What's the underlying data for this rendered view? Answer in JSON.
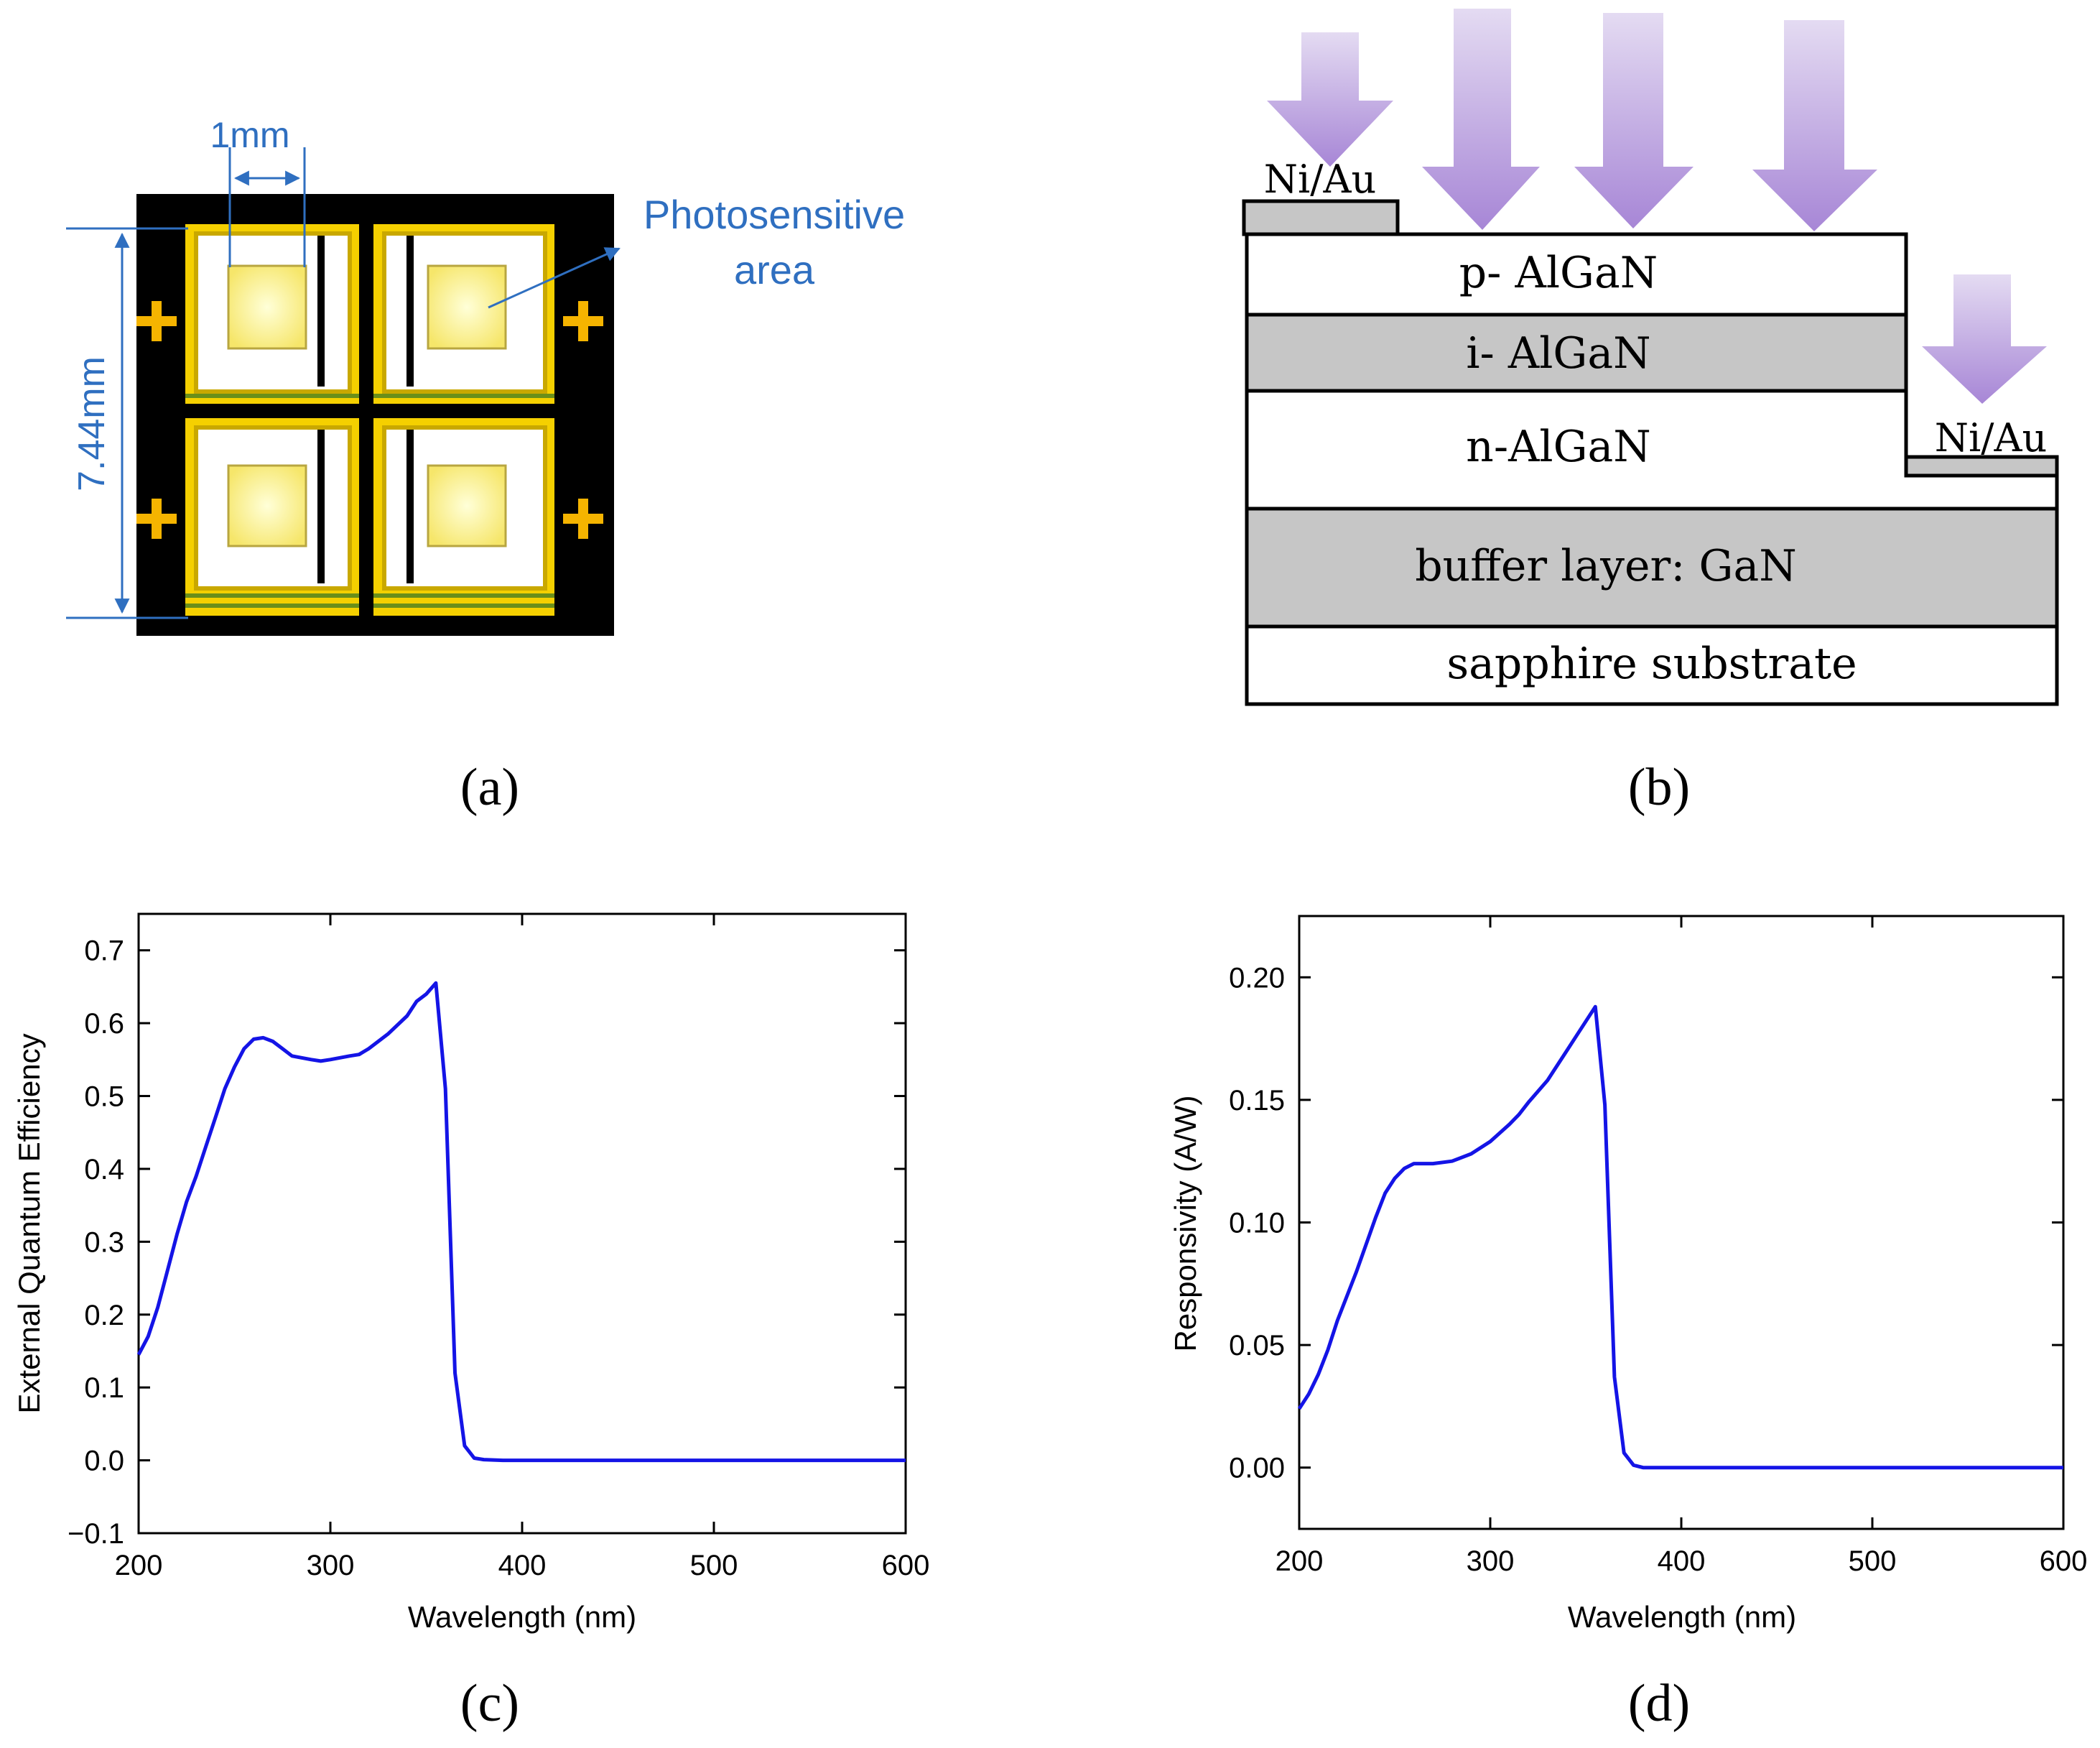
{
  "panel_a": {
    "label": "(a)",
    "dim_width": "1mm",
    "dim_height": "7.44mm",
    "callout_line1": "Photosensitive",
    "callout_line2": "area",
    "colors": {
      "background": "#000000",
      "frame": "#f5d000",
      "window": "#fff6a8",
      "callout": "#1f78c8"
    }
  },
  "panel_b": {
    "label": "(b)",
    "contact_top": "Ni/Au",
    "contact_bottom": "Ni/Au",
    "layers": [
      "p- AlGaN",
      "i- AlGaN",
      "n-AlGaN",
      "buffer layer: GaN",
      "sapphire substrate"
    ],
    "colors": {
      "arrow": "#b9a0dd",
      "gray_layer": "#c6c6c6"
    }
  },
  "panel_c": {
    "label": "(c)"
  },
  "panel_d": {
    "label": "(d)"
  },
  "chart_data": [
    {
      "type": "line",
      "title": "",
      "xlabel": "Wavelength (nm)",
      "ylabel": "External Quantum Efficiency",
      "xlim": [
        200,
        600
      ],
      "ylim": [
        -0.1,
        0.75
      ],
      "xticks": [
        200,
        300,
        400,
        500,
        600
      ],
      "xtick_labels": [
        "200",
        "300",
        "400",
        "500",
        "600"
      ],
      "yticks": [
        -0.1,
        0.0,
        0.1,
        0.2,
        0.3,
        0.4,
        0.5,
        0.6,
        0.7
      ],
      "ytick_labels": [
        "−0.1",
        "0.0",
        "0.1",
        "0.2",
        "0.3",
        "0.4",
        "0.5",
        "0.6",
        "0.7"
      ],
      "line_color": "#1414e6",
      "series": [
        {
          "name": "EQE",
          "x": [
            200,
            205,
            210,
            215,
            220,
            225,
            230,
            235,
            240,
            245,
            250,
            255,
            260,
            265,
            270,
            275,
            280,
            290,
            295,
            300,
            310,
            315,
            320,
            330,
            340,
            345,
            350,
            355,
            360,
            365,
            370,
            375,
            380,
            390,
            400,
            450,
            500,
            550,
            600
          ],
          "y": [
            0.145,
            0.17,
            0.21,
            0.26,
            0.31,
            0.355,
            0.39,
            0.43,
            0.47,
            0.51,
            0.54,
            0.565,
            0.578,
            0.58,
            0.575,
            0.565,
            0.555,
            0.55,
            0.548,
            0.55,
            0.555,
            0.557,
            0.565,
            0.585,
            0.61,
            0.63,
            0.64,
            0.655,
            0.51,
            0.12,
            0.02,
            0.003,
            0.001,
            0.0,
            0.0,
            0.0,
            0.0,
            0.0,
            0.0
          ]
        }
      ]
    },
    {
      "type": "line",
      "title": "",
      "xlabel": "Wavelength (nm)",
      "ylabel": "Responsivity (A/W)",
      "xlim": [
        200,
        600
      ],
      "ylim": [
        -0.025,
        0.225
      ],
      "xticks": [
        200,
        300,
        400,
        500,
        600
      ],
      "xtick_labels": [
        "200",
        "300",
        "400",
        "500",
        "600"
      ],
      "yticks": [
        0.0,
        0.05,
        0.1,
        0.15,
        0.2
      ],
      "ytick_labels": [
        "0.00",
        "0.05",
        "0.10",
        "0.15",
        "0.20"
      ],
      "line_color": "#1414e6",
      "series": [
        {
          "name": "Responsivity",
          "x": [
            200,
            205,
            210,
            215,
            220,
            225,
            230,
            235,
            240,
            245,
            250,
            255,
            260,
            265,
            270,
            280,
            290,
            300,
            310,
            315,
            320,
            330,
            340,
            345,
            350,
            355,
            360,
            365,
            370,
            375,
            380,
            390,
            400,
            450,
            500,
            550,
            600
          ],
          "y": [
            0.024,
            0.03,
            0.038,
            0.048,
            0.06,
            0.07,
            0.08,
            0.091,
            0.102,
            0.112,
            0.118,
            0.122,
            0.124,
            0.124,
            0.124,
            0.125,
            0.128,
            0.133,
            0.14,
            0.144,
            0.149,
            0.158,
            0.17,
            0.176,
            0.182,
            0.188,
            0.148,
            0.037,
            0.006,
            0.001,
            0.0,
            0.0,
            0.0,
            0.0,
            0.0,
            0.0,
            0.0
          ]
        }
      ]
    }
  ]
}
